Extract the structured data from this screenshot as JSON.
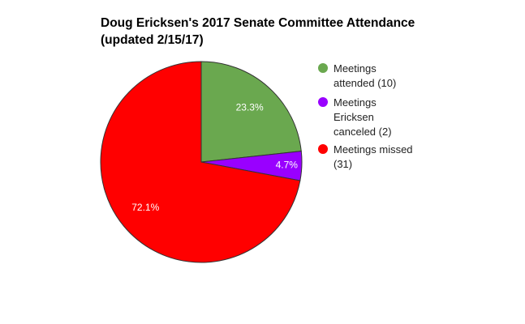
{
  "chart_data": {
    "type": "pie",
    "title": "Doug Ericksen's 2017 Senate Committee Attendance (updated 2/15/17)",
    "categories": [
      "Meetings attended (10)",
      "Meetings Ericksen canceled (2)",
      "Meetings missed (31)"
    ],
    "values": [
      23.3,
      4.7,
      72.1
    ],
    "value_labels": [
      "23.3%",
      "4.7%",
      "72.1%"
    ],
    "colors": [
      "#6aa84f",
      "#9900ff",
      "#ff0000"
    ],
    "legend": "right"
  }
}
